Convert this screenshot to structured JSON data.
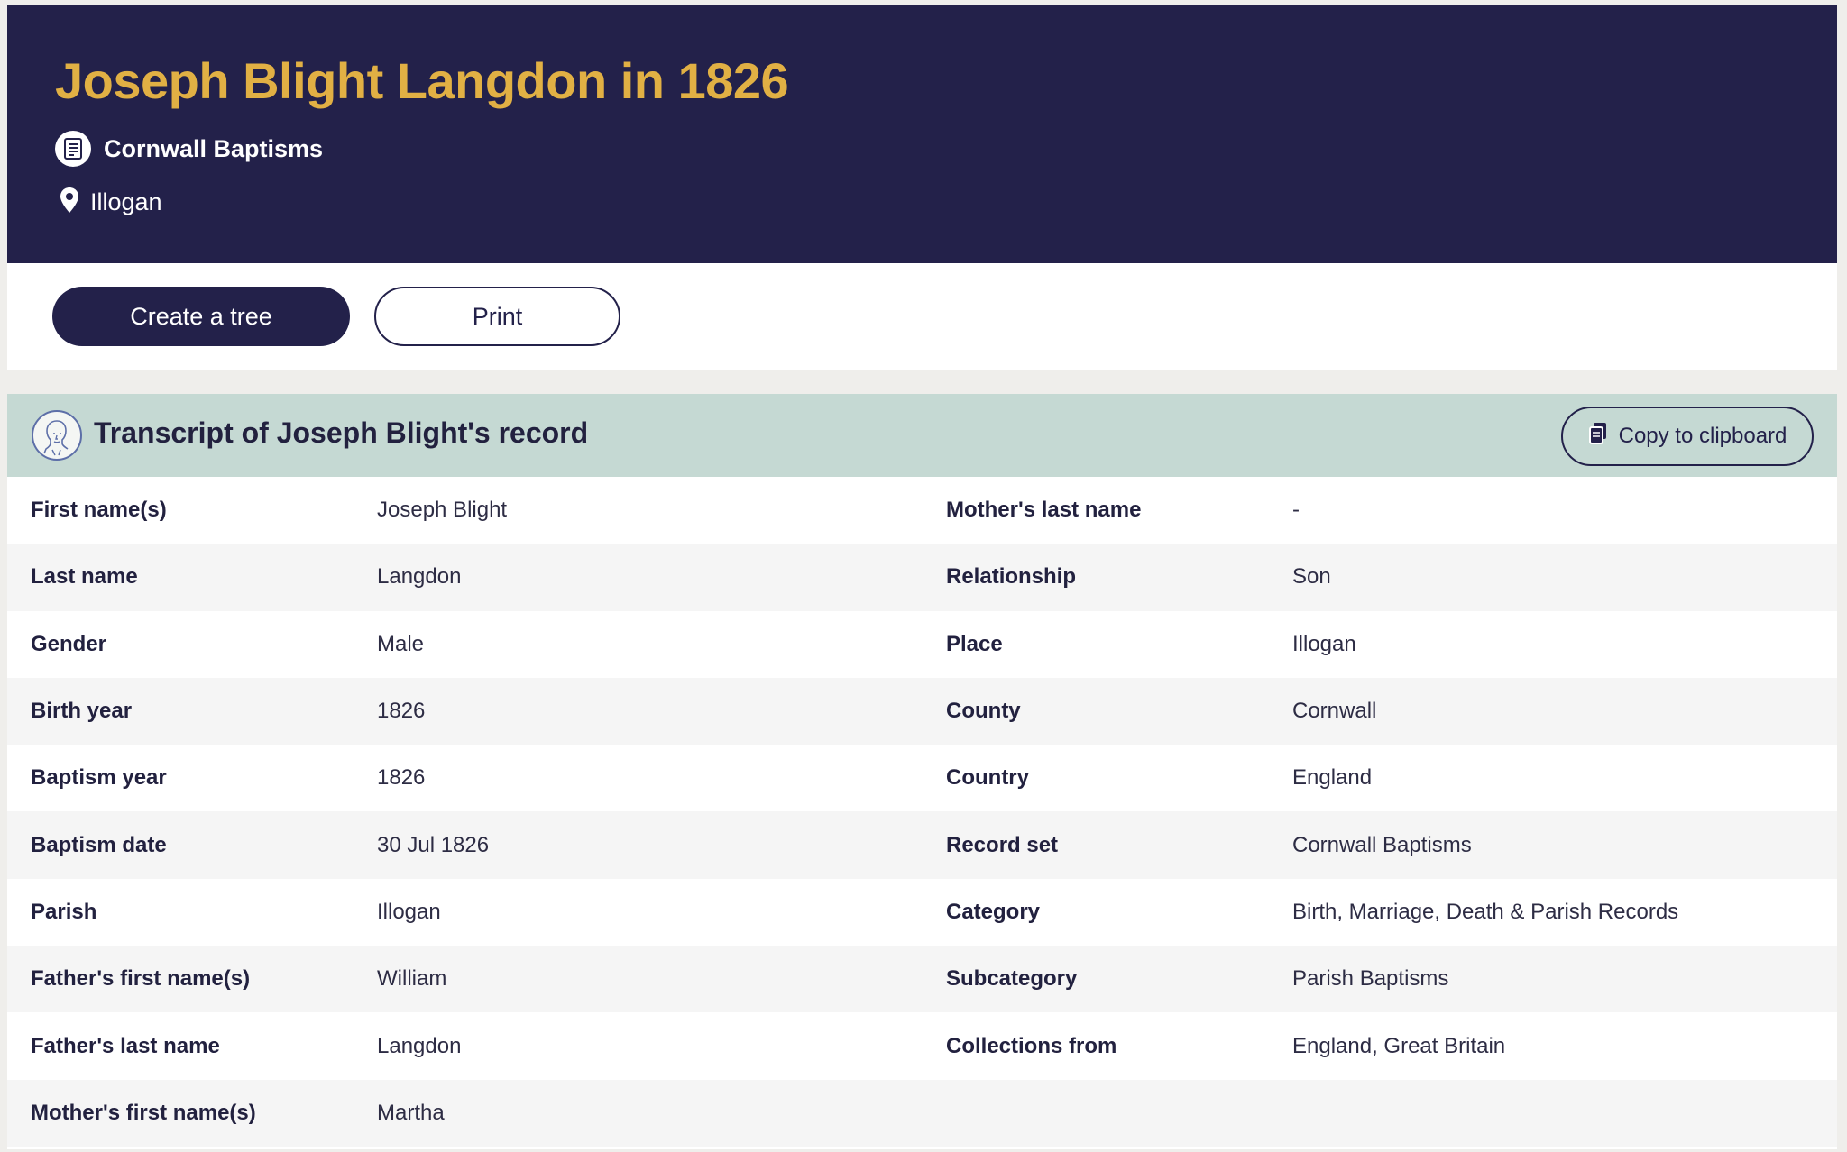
{
  "header": {
    "title": "Joseph Blight Langdon in 1826",
    "collection_label": "Cornwall Baptisms",
    "collection_icon": "document-icon",
    "location_label": "Illogan",
    "location_icon": "map-pin-icon",
    "background_color": "#23214a",
    "title_color": "#e1b044"
  },
  "actions": {
    "create_tree_label": "Create a tree",
    "print_label": "Print"
  },
  "transcript": {
    "title": "Transcript of Joseph Blight's record",
    "copy_label": "Copy to clipboard",
    "copy_icon": "clipboard-icon",
    "avatar_icon": "person-portrait-icon",
    "header_color": "#c5d9d3",
    "rows": [
      {
        "k1": "First name(s)",
        "v1": "Joseph Blight",
        "k2": "Mother's last name",
        "v2": "-"
      },
      {
        "k1": "Last name",
        "v1": "Langdon",
        "k2": "Relationship",
        "v2": "Son"
      },
      {
        "k1": "Gender",
        "v1": "Male",
        "k2": "Place",
        "v2": "Illogan"
      },
      {
        "k1": "Birth year",
        "v1": "1826",
        "k2": "County",
        "v2": "Cornwall"
      },
      {
        "k1": "Baptism year",
        "v1": "1826",
        "k2": "Country",
        "v2": "England"
      },
      {
        "k1": "Baptism date",
        "v1": "30 Jul 1826",
        "k2": "Record set",
        "v2": "Cornwall Baptisms"
      },
      {
        "k1": "Parish",
        "v1": "Illogan",
        "k2": "Category",
        "v2": "Birth, Marriage, Death & Parish Records"
      },
      {
        "k1": "Father's first name(s)",
        "v1": "William",
        "k2": "Subcategory",
        "v2": "Parish Baptisms"
      },
      {
        "k1": "Father's last name",
        "v1": "Langdon",
        "k2": "Collections from",
        "v2": "England, Great Britain"
      },
      {
        "k1": "Mother's first name(s)",
        "v1": "Martha",
        "k2": "",
        "v2": ""
      }
    ]
  }
}
